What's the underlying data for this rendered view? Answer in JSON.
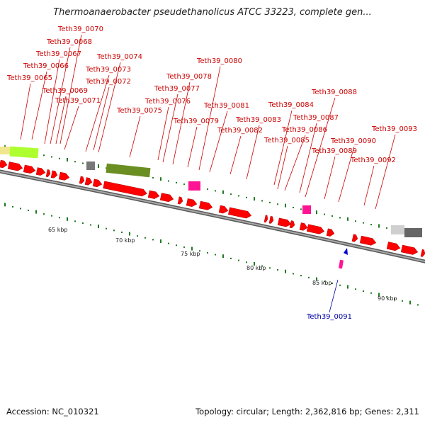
{
  "title": "Thermoanaerobacter pseudethanolicus ATCC 33223, complete gen...",
  "footer": {
    "accession": "Accession: NC_010321",
    "summary": "Topology: circular; Length: 2,362,816 bp; Genes: 2,311"
  },
  "colors": {
    "cds": "#ff0000",
    "rna": "#ff1493",
    "label_plus": "#cc0000",
    "label_minus": "#0000aa",
    "ticks": "#1f7a1f",
    "backbone": "#808080",
    "feature_olive": "#6b8e23",
    "feature_lime": "#adff2f",
    "feature_cream": "#f0e68c",
    "feature_gray": "#a9a9a9"
  },
  "scale_labels": [
    "65 kbp",
    "70 kbp",
    "75 kbp",
    "80 kbp",
    "85 kbp",
    "90 kbp"
  ],
  "gene_labels": [
    "Teth39_0065",
    "Teth39_0066",
    "Teth39_0067",
    "Teth39_0068",
    "Teth39_0069",
    "Teth39_0070",
    "Teth39_0071",
    "Teth39_0072",
    "Teth39_0073",
    "Teth39_0074",
    "Teth39_0075",
    "Teth39_0076",
    "Teth39_0077",
    "Teth39_0078",
    "Teth39_0079",
    "Teth39_0080",
    "Teth39_0081",
    "Teth39_0082",
    "Teth39_0083",
    "Teth39_0084",
    "Teth39_0085",
    "Teth39_0086",
    "Teth39_0087",
    "Teth39_0088",
    "Teth39_0089",
    "Teth39_0090",
    "Teth39_0092",
    "Teth39_0093"
  ],
  "minus_strand_label": "Teth39_0091"
}
